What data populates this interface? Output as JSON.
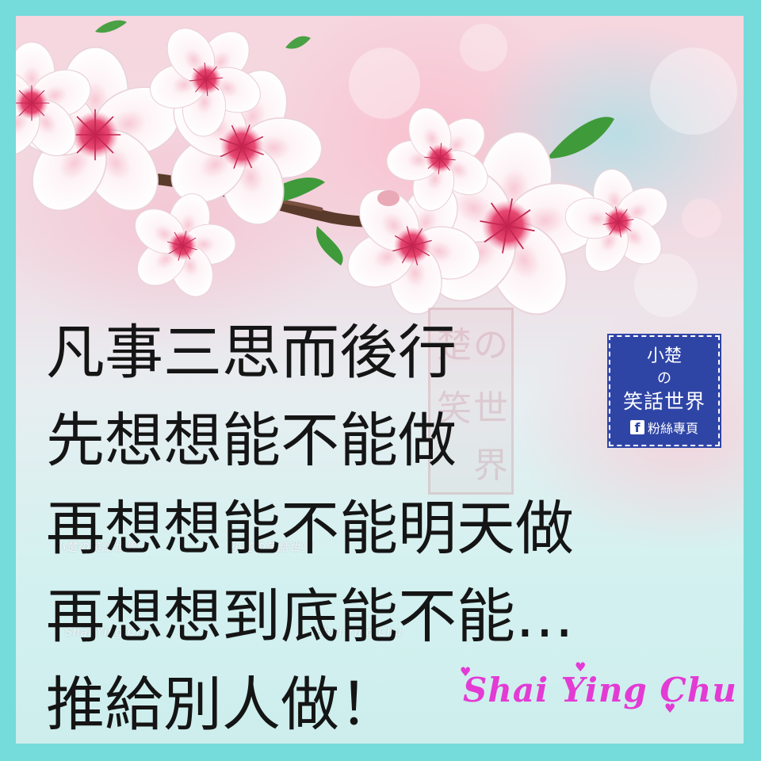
{
  "quote": {
    "lines": [
      "凡事三思而後行",
      "先想想能不能做",
      "再想想能不能明天做",
      "再想想到底能不能…",
      "推給別人做！"
    ]
  },
  "badge": {
    "line1": "小楚",
    "line2": "の",
    "line3": "笑話世界",
    "fb_icon": "f",
    "line4": "粉絲專頁"
  },
  "watermarks": {
    "cn_left": "小楚の笑話世界",
    "cn_right": "小楚の笑話世界",
    "en_left": "Shai Ying Chu",
    "en_right": "Shai Ying Chu"
  },
  "seal": [
    "楚",
    "の",
    "笑",
    "世",
    "界"
  ],
  "signature": "Shai Ying Chu",
  "colors": {
    "frame": "#75dcdb",
    "text": "#151515",
    "badge": "#2f45a6",
    "signature": "#e33bd4",
    "petal": "#fbf3f6",
    "flower_center": "#e23a64",
    "leaf": "#3f9a3a",
    "branch": "#5a3a2a"
  },
  "icons": {
    "badge_logo": "facebook-icon",
    "decoration": "heart-icon"
  }
}
